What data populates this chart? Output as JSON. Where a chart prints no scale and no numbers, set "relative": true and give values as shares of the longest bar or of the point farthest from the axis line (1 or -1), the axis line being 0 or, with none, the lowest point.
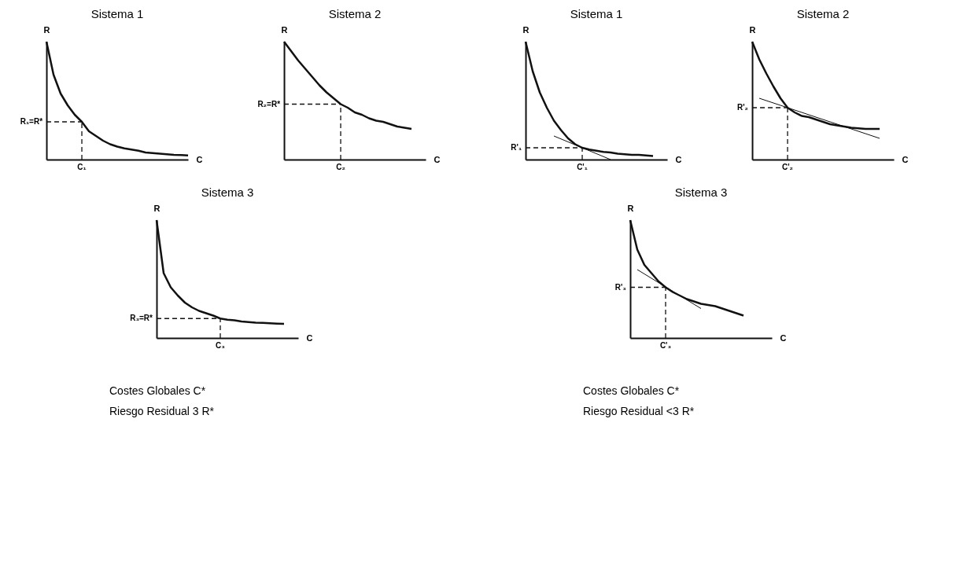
{
  "chart_data": [
    {
      "type": "line",
      "title": "Sistema 1",
      "xlabel": "C",
      "ylabel": "R",
      "relative": true,
      "categories": [
        null,
        null,
        null,
        null,
        null,
        null,
        null,
        null,
        null,
        null,
        null,
        null,
        null,
        null,
        null,
        null,
        null,
        null,
        null,
        null,
        null
      ],
      "series": [
        {
          "color": "#111111",
          "values": [
            1,
            0.72,
            0.56,
            0.46,
            0.38,
            0.32,
            0.24,
            0.2,
            0.16,
            0.13,
            0.11,
            0.095,
            0.085,
            0.075,
            0.06,
            0.055,
            0.05,
            0.045,
            0.04,
            0.038,
            0.035
          ]
        }
      ],
      "ref_lines": [
        {
          "axis": "y",
          "value": 0.32,
          "label": "R₁=R*",
          "line_style": "dashed"
        }
      ],
      "annotations": [
        "C₁"
      ]
    },
    {
      "type": "line",
      "title": "Sistema 2",
      "xlabel": "C",
      "ylabel": "R",
      "relative": true,
      "categories": [
        null,
        null,
        null,
        null,
        null,
        null,
        null,
        null,
        null,
        null,
        null,
        null,
        null,
        null,
        null,
        null,
        null,
        null,
        null,
        null,
        null
      ],
      "series": [
        {
          "color": "#111111",
          "values": [
            1,
            0.92,
            0.84,
            0.77,
            0.7,
            0.63,
            0.57,
            0.52,
            0.47,
            0.44,
            0.4,
            0.38,
            0.35,
            0.33,
            0.32,
            0.3,
            0.28,
            0.27,
            0.26,
            null,
            null
          ]
        }
      ],
      "ref_lines": [
        {
          "axis": "y",
          "value": 0.47,
          "label": "R₂=R*",
          "line_style": "dashed"
        }
      ],
      "annotations": [
        "C₂"
      ]
    },
    {
      "type": "line",
      "title": "Sistema 1",
      "xlabel": "C",
      "ylabel": "R",
      "relative": true,
      "categories": [
        null,
        null,
        null,
        null,
        null,
        null,
        null,
        null,
        null,
        null,
        null,
        null,
        null,
        null,
        null,
        null,
        null,
        null,
        null,
        null,
        null
      ],
      "series": [
        {
          "color": "#111111",
          "values": [
            1,
            0.75,
            0.57,
            0.44,
            0.33,
            0.25,
            0.18,
            0.13,
            0.1,
            0.085,
            0.075,
            0.065,
            0.06,
            0.05,
            0.045,
            0.04,
            0.04,
            0.035,
            0.03,
            null,
            null
          ]
        },
        {
          "color": "#111111",
          "values": [
            null,
            null,
            null,
            null,
            0.2,
            null,
            null,
            null,
            null,
            null,
            null,
            null,
            0,
            null,
            null,
            null,
            null,
            null,
            null,
            null,
            null
          ]
        }
      ],
      "ref_lines": [
        {
          "axis": "y",
          "value": 0.1,
          "label": "R'₁",
          "line_style": "dashed"
        }
      ],
      "annotations": [
        "C'₁"
      ]
    },
    {
      "type": "line",
      "title": "Sistema 2",
      "xlabel": "C",
      "ylabel": "R",
      "relative": true,
      "categories": [
        null,
        null,
        null,
        null,
        null,
        null,
        null,
        null,
        null,
        null,
        null,
        null,
        null,
        null,
        null,
        null,
        null,
        null,
        null,
        null,
        null
      ],
      "series": [
        {
          "color": "#111111",
          "values": [
            1,
            0.85,
            0.73,
            0.62,
            0.52,
            0.44,
            0.4,
            0.37,
            0.36,
            0.34,
            0.32,
            0.3,
            0.29,
            0.28,
            0.27,
            0.265,
            0.26,
            0.26,
            0.26,
            null,
            null
          ]
        },
        {
          "color": "#111111",
          "values": [
            null,
            0.52,
            null,
            null,
            null,
            null,
            null,
            null,
            null,
            null,
            null,
            null,
            null,
            null,
            null,
            null,
            null,
            null,
            0.18,
            null,
            null
          ]
        }
      ],
      "ref_lines": [
        {
          "axis": "y",
          "value": 0.44,
          "label": "R'₂",
          "line_style": "dashed"
        }
      ],
      "annotations": [
        "C'₂"
      ]
    },
    {
      "type": "line",
      "title": "Sistema 3",
      "xlabel": "C",
      "ylabel": "R",
      "relative": true,
      "categories": [
        null,
        null,
        null,
        null,
        null,
        null,
        null,
        null,
        null,
        null,
        null,
        null,
        null,
        null,
        null,
        null,
        null,
        null,
        null,
        null,
        null
      ],
      "series": [
        {
          "color": "#111111",
          "values": [
            1,
            0.55,
            0.43,
            0.36,
            0.3,
            0.26,
            0.23,
            0.21,
            0.19,
            0.165,
            0.155,
            0.15,
            0.14,
            0.135,
            0.13,
            0.128,
            0.125,
            0.122,
            0.12,
            null,
            null
          ]
        }
      ],
      "ref_lines": [
        {
          "axis": "y",
          "value": 0.165,
          "label": "R₃=R*",
          "line_style": "dashed"
        }
      ],
      "annotations": [
        "C₃",
        "Costes Globales C*",
        "Riesgo Residual 3 R*"
      ]
    },
    {
      "type": "line",
      "title": "Sistema 3",
      "xlabel": "C",
      "ylabel": "R",
      "relative": true,
      "categories": [
        null,
        null,
        null,
        null,
        null,
        null,
        null,
        null,
        null,
        null,
        null,
        null,
        null,
        null,
        null,
        null,
        null,
        null,
        null,
        null,
        null
      ],
      "series": [
        {
          "color": "#111111",
          "values": [
            1,
            0.75,
            0.62,
            0.55,
            0.48,
            0.43,
            0.39,
            0.36,
            0.33,
            0.31,
            0.29,
            0.28,
            0.27,
            0.25,
            0.23,
            0.21,
            0.19,
            null,
            null,
            null,
            null
          ]
        },
        {
          "color": "#111111",
          "values": [
            null,
            0.58,
            null,
            null,
            null,
            null,
            null,
            null,
            null,
            null,
            0.25,
            null,
            null,
            null,
            null,
            null,
            null,
            null,
            null,
            null,
            null
          ]
        }
      ],
      "ref_lines": [
        {
          "axis": "y",
          "value": 0.43,
          "label": "R'₃",
          "line_style": "dashed"
        }
      ],
      "annotations": [
        "C'₃",
        "Costes Globales C*",
        "Riesgo Residual <3 R*"
      ]
    }
  ]
}
